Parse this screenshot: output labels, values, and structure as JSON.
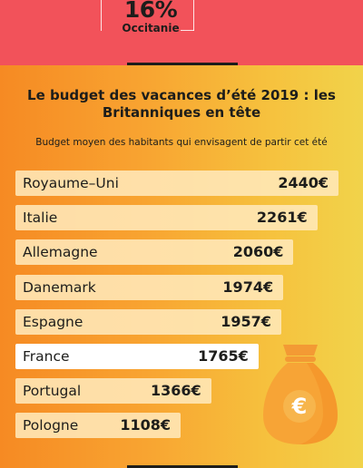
{
  "header": {
    "percent": "16%",
    "region": "Occitanie"
  },
  "colors": {
    "top_band": "#f2525a",
    "gradient_start": "#f68a23",
    "gradient_end": "#f1d34a",
    "bar": "#ffe8ba",
    "bar_highlight": "#ffffff",
    "text": "#1d1d1b"
  },
  "chart_data": {
    "type": "bar",
    "orientation": "horizontal",
    "title": "Le budget des vacances d’été 2019 : les Britanniques en tête",
    "subtitle": "Budget moyen des habitants qui envisagent de partir cet été",
    "categories": [
      "Royaume–Uni",
      "Italie",
      "Allemagne",
      "Danemark",
      "Espagne",
      "France",
      "Portugal",
      "Pologne"
    ],
    "values": [
      2440,
      2261,
      2060,
      1974,
      1957,
      1765,
      1366,
      1108
    ],
    "value_labels": [
      "2440€",
      "2261€",
      "2060€",
      "1974€",
      "1957€",
      "1765€",
      "1366€",
      "1108€"
    ],
    "highlight": "France",
    "icon": "money-bag-euro-icon"
  }
}
